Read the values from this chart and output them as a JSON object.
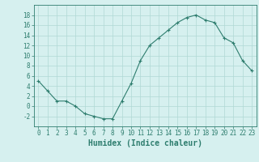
{
  "x": [
    0,
    1,
    2,
    3,
    4,
    5,
    6,
    7,
    8,
    9,
    10,
    11,
    12,
    13,
    14,
    15,
    16,
    17,
    18,
    19,
    20,
    21,
    22,
    23
  ],
  "y": [
    5,
    3,
    1,
    1,
    0,
    -1.5,
    -2,
    -2.5,
    -2.5,
    1,
    4.5,
    9,
    12,
    13.5,
    15,
    16.5,
    17.5,
    18,
    17,
    16.5,
    13.5,
    12.5,
    9,
    7
  ],
  "line_color": "#2e7d6e",
  "marker": "+",
  "bg_color": "#d6f0ef",
  "grid_color": "#b0d8d5",
  "xlabel": "Humidex (Indice chaleur)",
  "ylim": [
    -4,
    20
  ],
  "xlim": [
    -0.5,
    23.5
  ],
  "yticks": [
    -2,
    0,
    2,
    4,
    6,
    8,
    10,
    12,
    14,
    16,
    18
  ],
  "xticks": [
    0,
    1,
    2,
    3,
    4,
    5,
    6,
    7,
    8,
    9,
    10,
    11,
    12,
    13,
    14,
    15,
    16,
    17,
    18,
    19,
    20,
    21,
    22,
    23
  ],
  "tick_color": "#2e7d6e",
  "label_color": "#2e7d6e",
  "font_size": 5.5,
  "xlabel_fontsize": 7.0
}
